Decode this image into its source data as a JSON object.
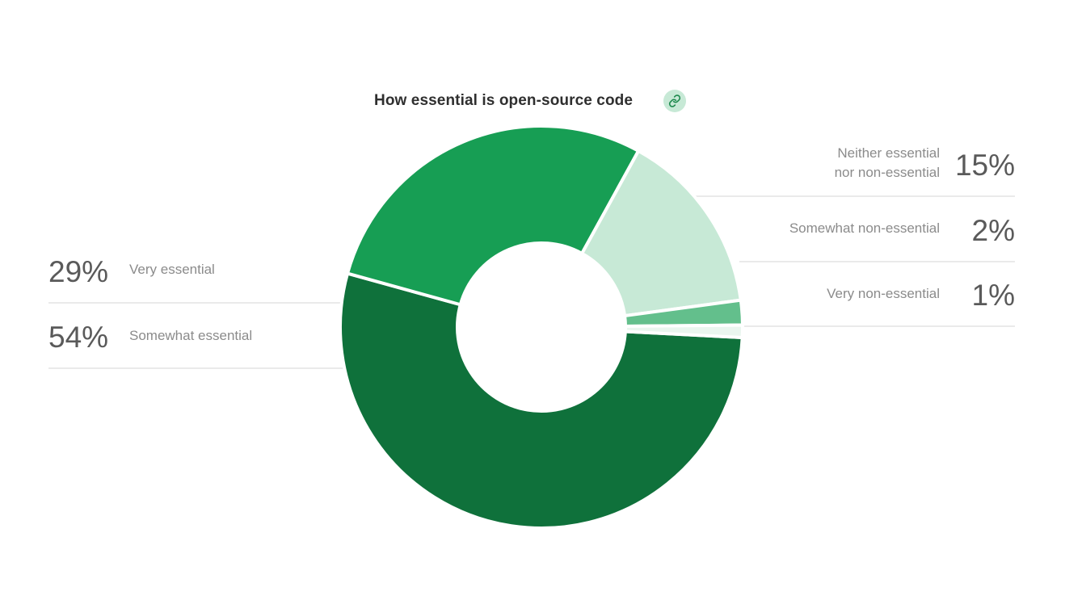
{
  "header": {
    "title": "How essential is open-source code",
    "link_icon": "link-icon"
  },
  "colors": {
    "very_essential": "#179e54",
    "somewhat_essential": "#0f713b",
    "neither": "#c7e9d6",
    "somewhat_non_essential": "#63bf8c",
    "very_non_essential": "#eaf6ef",
    "leader_line": "#e3e3e3",
    "link_button_bg": "#c7e9d6",
    "link_icon": "#1e8a4e"
  },
  "chart_data": {
    "type": "pie",
    "variant": "donut",
    "title": "How essential is open-source code",
    "categories": [
      "Very essential",
      "Somewhat essential",
      "Very non-essential",
      "Somewhat non-essential",
      "Neither essential nor non-essential"
    ],
    "values": [
      29,
      54,
      1,
      2,
      15
    ],
    "labels": [
      "29%",
      "54%",
      "1%",
      "2%",
      "15%"
    ],
    "label_lines": [
      [
        "Very essential"
      ],
      [
        "Somewhat essential"
      ],
      [
        "Very non-essential"
      ],
      [
        "Somewhat non-essential"
      ],
      [
        "Neither essential",
        "nor non-essential"
      ]
    ],
    "label_sides": [
      "left",
      "left",
      "right",
      "right",
      "right"
    ]
  }
}
